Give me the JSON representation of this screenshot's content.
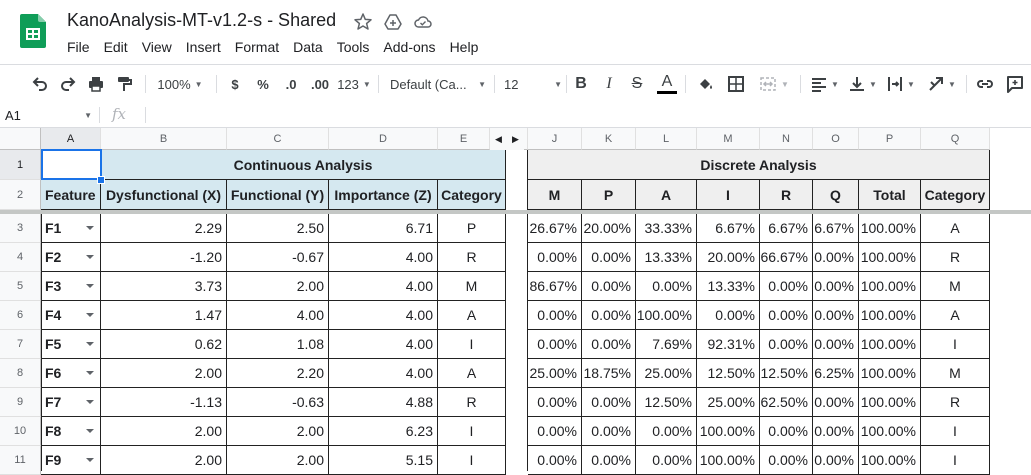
{
  "app": {
    "doc_title": "KanoAnalysis-MT-v1.2-s - Shared",
    "menu": [
      "File",
      "Edit",
      "View",
      "Insert",
      "Format",
      "Data",
      "Tools",
      "Add-ons",
      "Help"
    ]
  },
  "toolbar": {
    "zoom": "100%",
    "currency": "$",
    "percent": "%",
    "dec_decrease": ".0",
    "dec_increase": ".00",
    "more_formats": "123",
    "font": "Default (Ca...",
    "font_size": "12",
    "bold": "B",
    "italic": "I",
    "strike": "S",
    "text_color": "A"
  },
  "formula_bar": {
    "cell_ref": "A1",
    "fx": "fx",
    "value": ""
  },
  "columns": [
    "A",
    "B",
    "C",
    "D",
    "E",
    "J",
    "K",
    "L",
    "M",
    "N",
    "O",
    "P",
    "Q"
  ],
  "rows": [
    "1",
    "2",
    "3",
    "4",
    "5",
    "6",
    "7",
    "8",
    "9",
    "10",
    "11"
  ],
  "sheet": {
    "continuous_title": "Continuous Analysis",
    "discrete_title": "Discrete Analysis",
    "left_headers": [
      "Feature",
      "Dysfunctional (X)",
      "Functional (Y)",
      "Importance (Z)",
      "Category"
    ],
    "right_headers": [
      "M",
      "P",
      "A",
      "I",
      "R",
      "Q",
      "Total",
      "Category"
    ],
    "data": [
      {
        "f": "F1",
        "x": "2.29",
        "y": "2.50",
        "z": "6.71",
        "c": "P",
        "d": [
          "26.67%",
          "20.00%",
          "33.33%",
          "6.67%",
          "6.67%",
          "6.67%",
          "100.00%",
          "A"
        ]
      },
      {
        "f": "F2",
        "x": "-1.20",
        "y": "-0.67",
        "z": "4.00",
        "c": "R",
        "d": [
          "0.00%",
          "0.00%",
          "13.33%",
          "20.00%",
          "66.67%",
          "0.00%",
          "100.00%",
          "R"
        ]
      },
      {
        "f": "F3",
        "x": "3.73",
        "y": "2.00",
        "z": "4.00",
        "c": "M",
        "d": [
          "86.67%",
          "0.00%",
          "0.00%",
          "13.33%",
          "0.00%",
          "0.00%",
          "100.00%",
          "M"
        ]
      },
      {
        "f": "F4",
        "x": "1.47",
        "y": "4.00",
        "z": "4.00",
        "c": "A",
        "d": [
          "0.00%",
          "0.00%",
          "100.00%",
          "0.00%",
          "0.00%",
          "0.00%",
          "100.00%",
          "A"
        ]
      },
      {
        "f": "F5",
        "x": "0.62",
        "y": "1.08",
        "z": "4.00",
        "c": "I",
        "d": [
          "0.00%",
          "0.00%",
          "7.69%",
          "92.31%",
          "0.00%",
          "0.00%",
          "100.00%",
          "I"
        ]
      },
      {
        "f": "F6",
        "x": "2.00",
        "y": "2.20",
        "z": "4.00",
        "c": "A",
        "d": [
          "25.00%",
          "18.75%",
          "25.00%",
          "12.50%",
          "12.50%",
          "6.25%",
          "100.00%",
          "M"
        ]
      },
      {
        "f": "F7",
        "x": "-1.13",
        "y": "-0.63",
        "z": "4.88",
        "c": "R",
        "d": [
          "0.00%",
          "0.00%",
          "12.50%",
          "25.00%",
          "62.50%",
          "0.00%",
          "100.00%",
          "R"
        ]
      },
      {
        "f": "F8",
        "x": "2.00",
        "y": "2.00",
        "z": "6.23",
        "c": "I",
        "d": [
          "0.00%",
          "0.00%",
          "0.00%",
          "100.00%",
          "0.00%",
          "0.00%",
          "100.00%",
          "I"
        ]
      },
      {
        "f": "F9",
        "x": "2.00",
        "y": "2.00",
        "z": "5.15",
        "c": "I",
        "d": [
          "0.00%",
          "0.00%",
          "0.00%",
          "100.00%",
          "0.00%",
          "0.00%",
          "100.00%",
          "I"
        ]
      }
    ]
  },
  "colors": {
    "header_blue": "#d5e8f0",
    "header_gray": "#efefef",
    "selection": "#1a73e8",
    "sheets_green": "#0f9d58"
  }
}
